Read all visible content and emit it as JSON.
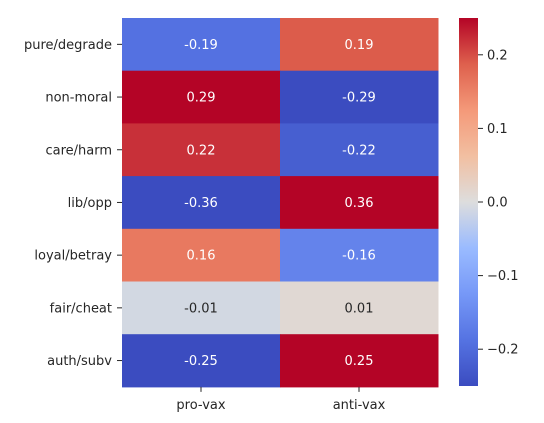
{
  "chart_data": {
    "type": "heatmap",
    "title": "",
    "xlabel": "",
    "ylabel": "",
    "rows": [
      "pure/degrade",
      "non-moral",
      "care/harm",
      "lib/opp",
      "loyal/betray",
      "fair/cheat",
      "auth/subv"
    ],
    "columns": [
      "pro-vax",
      "anti-vax"
    ],
    "values": [
      [
        -0.19,
        0.19
      ],
      [
        0.29,
        -0.29
      ],
      [
        0.22,
        -0.22
      ],
      [
        -0.36,
        0.36
      ],
      [
        0.16,
        -0.16
      ],
      [
        -0.01,
        0.01
      ],
      [
        -0.25,
        0.25
      ]
    ],
    "value_labels": [
      [
        "-0.19",
        "0.19"
      ],
      [
        "0.29",
        "-0.29"
      ],
      [
        "0.22",
        "-0.22"
      ],
      [
        "-0.36",
        "0.36"
      ],
      [
        "0.16",
        "-0.16"
      ],
      [
        "-0.01",
        "0.01"
      ],
      [
        "-0.25",
        "0.25"
      ]
    ],
    "colormap": "coolwarm",
    "vmin": -0.25,
    "vmax": 0.25,
    "colorbar_ticks": [
      0.2,
      0.1,
      0.0,
      -0.1,
      -0.2
    ],
    "colorbar_tick_labels": [
      "0.2",
      "0.1",
      "0.0",
      "−0.1",
      "−0.2"
    ],
    "grid": false,
    "legend": "colorbar-right"
  }
}
